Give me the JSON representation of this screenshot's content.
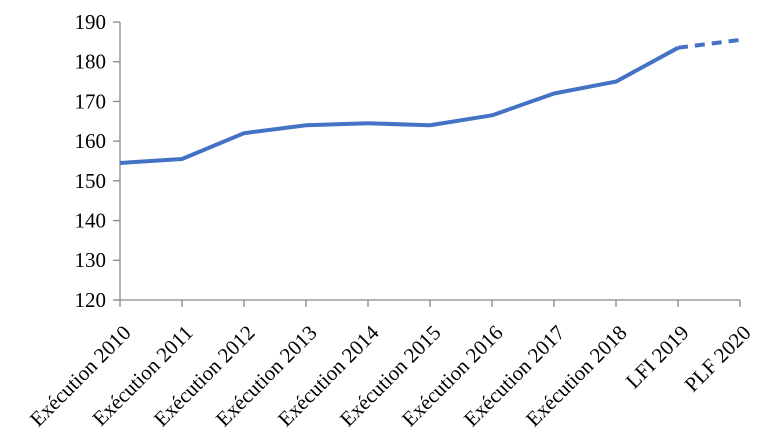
{
  "chart_data": {
    "type": "line",
    "title": "",
    "xlabel": "",
    "ylabel": "",
    "categories": [
      "Exécution 2010",
      "Exécution 2011",
      "Exécution 2012",
      "Exécution 2013",
      "Exécution 2014",
      "Exécution 2015",
      "Exécution 2016",
      "Exécution 2017",
      "Exécution 2018",
      "LFI 2019",
      "PLF 2020"
    ],
    "values": [
      154.5,
      155.5,
      162,
      164,
      164.5,
      164,
      166.5,
      172,
      175,
      183.5,
      185.5
    ],
    "dashed_segment": {
      "from_category": "LFI 2019",
      "to_category": "PLF 2020",
      "style": "dashed"
    },
    "ylim": [
      120,
      190
    ],
    "ytick_step": 10,
    "ytick_labels": [
      "120",
      "130",
      "140",
      "150",
      "160",
      "170",
      "180",
      "190"
    ],
    "x_label_rotation_deg": -45,
    "grid": false,
    "legend": false,
    "colors": {
      "line": "#4472C4",
      "axis": "#898989",
      "tick_text": "#000000",
      "background": "#ffffff"
    }
  }
}
